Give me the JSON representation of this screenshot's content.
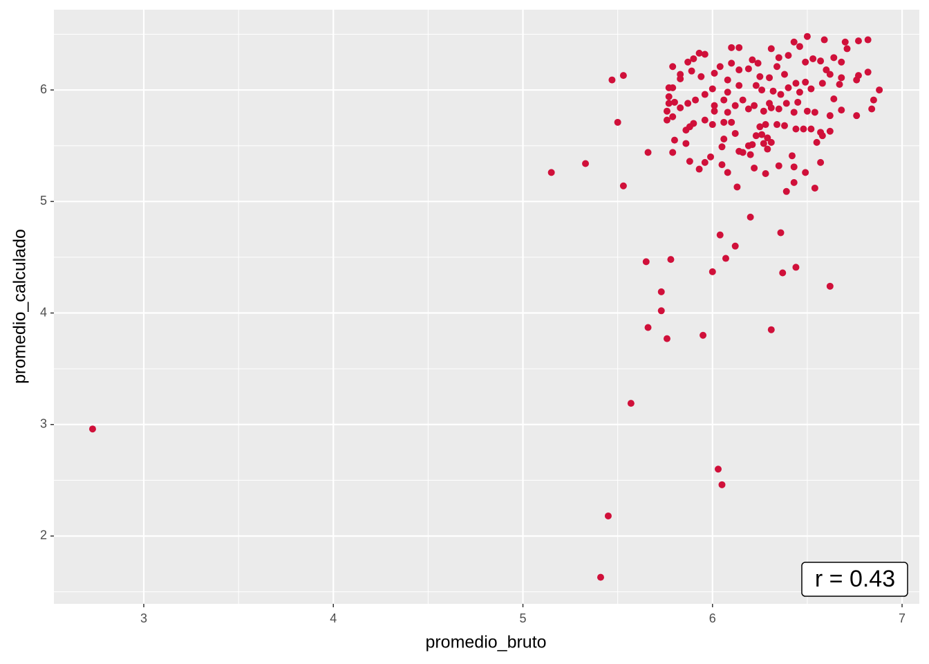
{
  "chart_data": {
    "type": "scatter",
    "x_label": "promedio_bruto",
    "y_label": "promedio_calculado",
    "annotation": "r = 0.43",
    "color": "#d0103a",
    "xlim": [
      2.526,
      7.091
    ],
    "ylim": [
      1.392,
      6.72
    ],
    "xticks": [
      3,
      4,
      5,
      6,
      7
    ],
    "yticks": [
      2,
      3,
      4,
      5,
      6
    ],
    "xminor": [
      3.5,
      4.5,
      5.5,
      6.5
    ],
    "yminor": [
      1.5,
      2.5,
      3.5,
      4.5,
      5.5,
      6.5
    ],
    "grid": true,
    "x": [
      2.73,
      5.15,
      5.33,
      5.47,
      5.53,
      5.5,
      5.53,
      5.66,
      6.2,
      6.04,
      6.36,
      6.12,
      5.65,
      5.78,
      6.07,
      6.0,
      6.37,
      6.44,
      6.62,
      5.73,
      5.73,
      5.66,
      5.76,
      5.95,
      6.31,
      5.57,
      6.03,
      6.05,
      5.45,
      5.41,
      6.5,
      6.59,
      6.82,
      6.77,
      6.7,
      6.43,
      6.46,
      6.71,
      6.1,
      6.14,
      6.31,
      6.4,
      6.35,
      5.93,
      5.96,
      6.53,
      6.64,
      6.57,
      6.68,
      6.49,
      6.21,
      6.24,
      6.1,
      6.04,
      5.79,
      5.87,
      5.9,
      6.34,
      6.38,
      6.14,
      6.19,
      6.6,
      6.82,
      6.77,
      6.76,
      6.68,
      6.62,
      5.83,
      5.83,
      5.89,
      5.94,
      6.08,
      6.01,
      6.25,
      6.3,
      6.49,
      6.44,
      6.58,
      6.67,
      6.88,
      6.85,
      6.84,
      6.76,
      6.68,
      6.64,
      6.52,
      6.46,
      6.4,
      6.36,
      6.32,
      6.26,
      6.23,
      6.14,
      6.08,
      6.0,
      5.96,
      5.79,
      5.77,
      5.77,
      5.77,
      5.8,
      5.83,
      5.87,
      5.76,
      5.76,
      5.79,
      5.91,
      6.01,
      6.01,
      6.06,
      6.12,
      6.16,
      6.19,
      6.22,
      6.27,
      6.31,
      6.35,
      6.3,
      6.39,
      6.45,
      6.43,
      6.5,
      6.54,
      6.62,
      6.08,
      6.06,
      6.1,
      6.0,
      5.96,
      5.9,
      5.88,
      5.86,
      6.28,
      6.25,
      6.34,
      6.38,
      6.44,
      6.48,
      6.52,
      6.57,
      6.62,
      6.58,
      6.55,
      6.12,
      6.23,
      6.26,
      6.29,
      6.31,
      6.27,
      6.21,
      6.19,
      6.06,
      6.05,
      5.8,
      5.86,
      5.79,
      6.14,
      6.16,
      6.29,
      6.42,
      6.2,
      5.99,
      5.88,
      5.96,
      6.05,
      6.35,
      6.43,
      6.57,
      5.93,
      6.22,
      6.08,
      6.28,
      6.49,
      6.43,
      6.13,
      6.54,
      6.39
    ],
    "y": [
      2.96,
      5.26,
      5.34,
      6.09,
      6.13,
      5.71,
      5.14,
      5.44,
      4.86,
      4.7,
      4.72,
      4.6,
      4.46,
      4.48,
      4.49,
      4.37,
      4.36,
      4.41,
      4.24,
      4.19,
      4.02,
      3.87,
      3.77,
      3.8,
      3.85,
      3.19,
      2.6,
      2.46,
      2.18,
      1.63,
      6.48,
      6.45,
      6.45,
      6.44,
      6.43,
      6.43,
      6.39,
      6.37,
      6.38,
      6.38,
      6.37,
      6.31,
      6.29,
      6.33,
      6.32,
      6.28,
      6.29,
      6.26,
      6.25,
      6.25,
      6.27,
      6.24,
      6.24,
      6.21,
      6.21,
      6.25,
      6.28,
      6.21,
      6.14,
      6.18,
      6.19,
      6.18,
      6.16,
      6.13,
      6.09,
      6.11,
      6.14,
      6.14,
      6.1,
      6.17,
      6.12,
      6.09,
      6.15,
      6.12,
      6.11,
      6.07,
      6.06,
      6.06,
      6.05,
      6.0,
      5.91,
      5.83,
      5.77,
      5.82,
      5.92,
      6.01,
      5.98,
      6.02,
      5.96,
      5.99,
      6.0,
      6.04,
      6.04,
      5.98,
      6.01,
      5.96,
      6.02,
      6.02,
      5.94,
      5.88,
      5.89,
      5.84,
      5.88,
      5.81,
      5.73,
      5.76,
      5.91,
      5.86,
      5.81,
      5.91,
      5.86,
      5.91,
      5.83,
      5.86,
      5.81,
      5.84,
      5.83,
      5.88,
      5.88,
      5.89,
      5.8,
      5.81,
      5.8,
      5.77,
      5.8,
      5.71,
      5.71,
      5.69,
      5.73,
      5.7,
      5.67,
      5.64,
      5.69,
      5.67,
      5.69,
      5.68,
      5.65,
      5.65,
      5.65,
      5.62,
      5.63,
      5.59,
      5.53,
      5.61,
      5.59,
      5.6,
      5.57,
      5.53,
      5.52,
      5.51,
      5.5,
      5.56,
      5.49,
      5.55,
      5.52,
      5.44,
      5.45,
      5.44,
      5.47,
      5.41,
      5.42,
      5.4,
      5.36,
      5.35,
      5.33,
      5.32,
      5.31,
      5.35,
      5.29,
      5.3,
      5.26,
      5.25,
      5.26,
      5.17,
      5.13,
      5.12,
      5.09
    ]
  }
}
